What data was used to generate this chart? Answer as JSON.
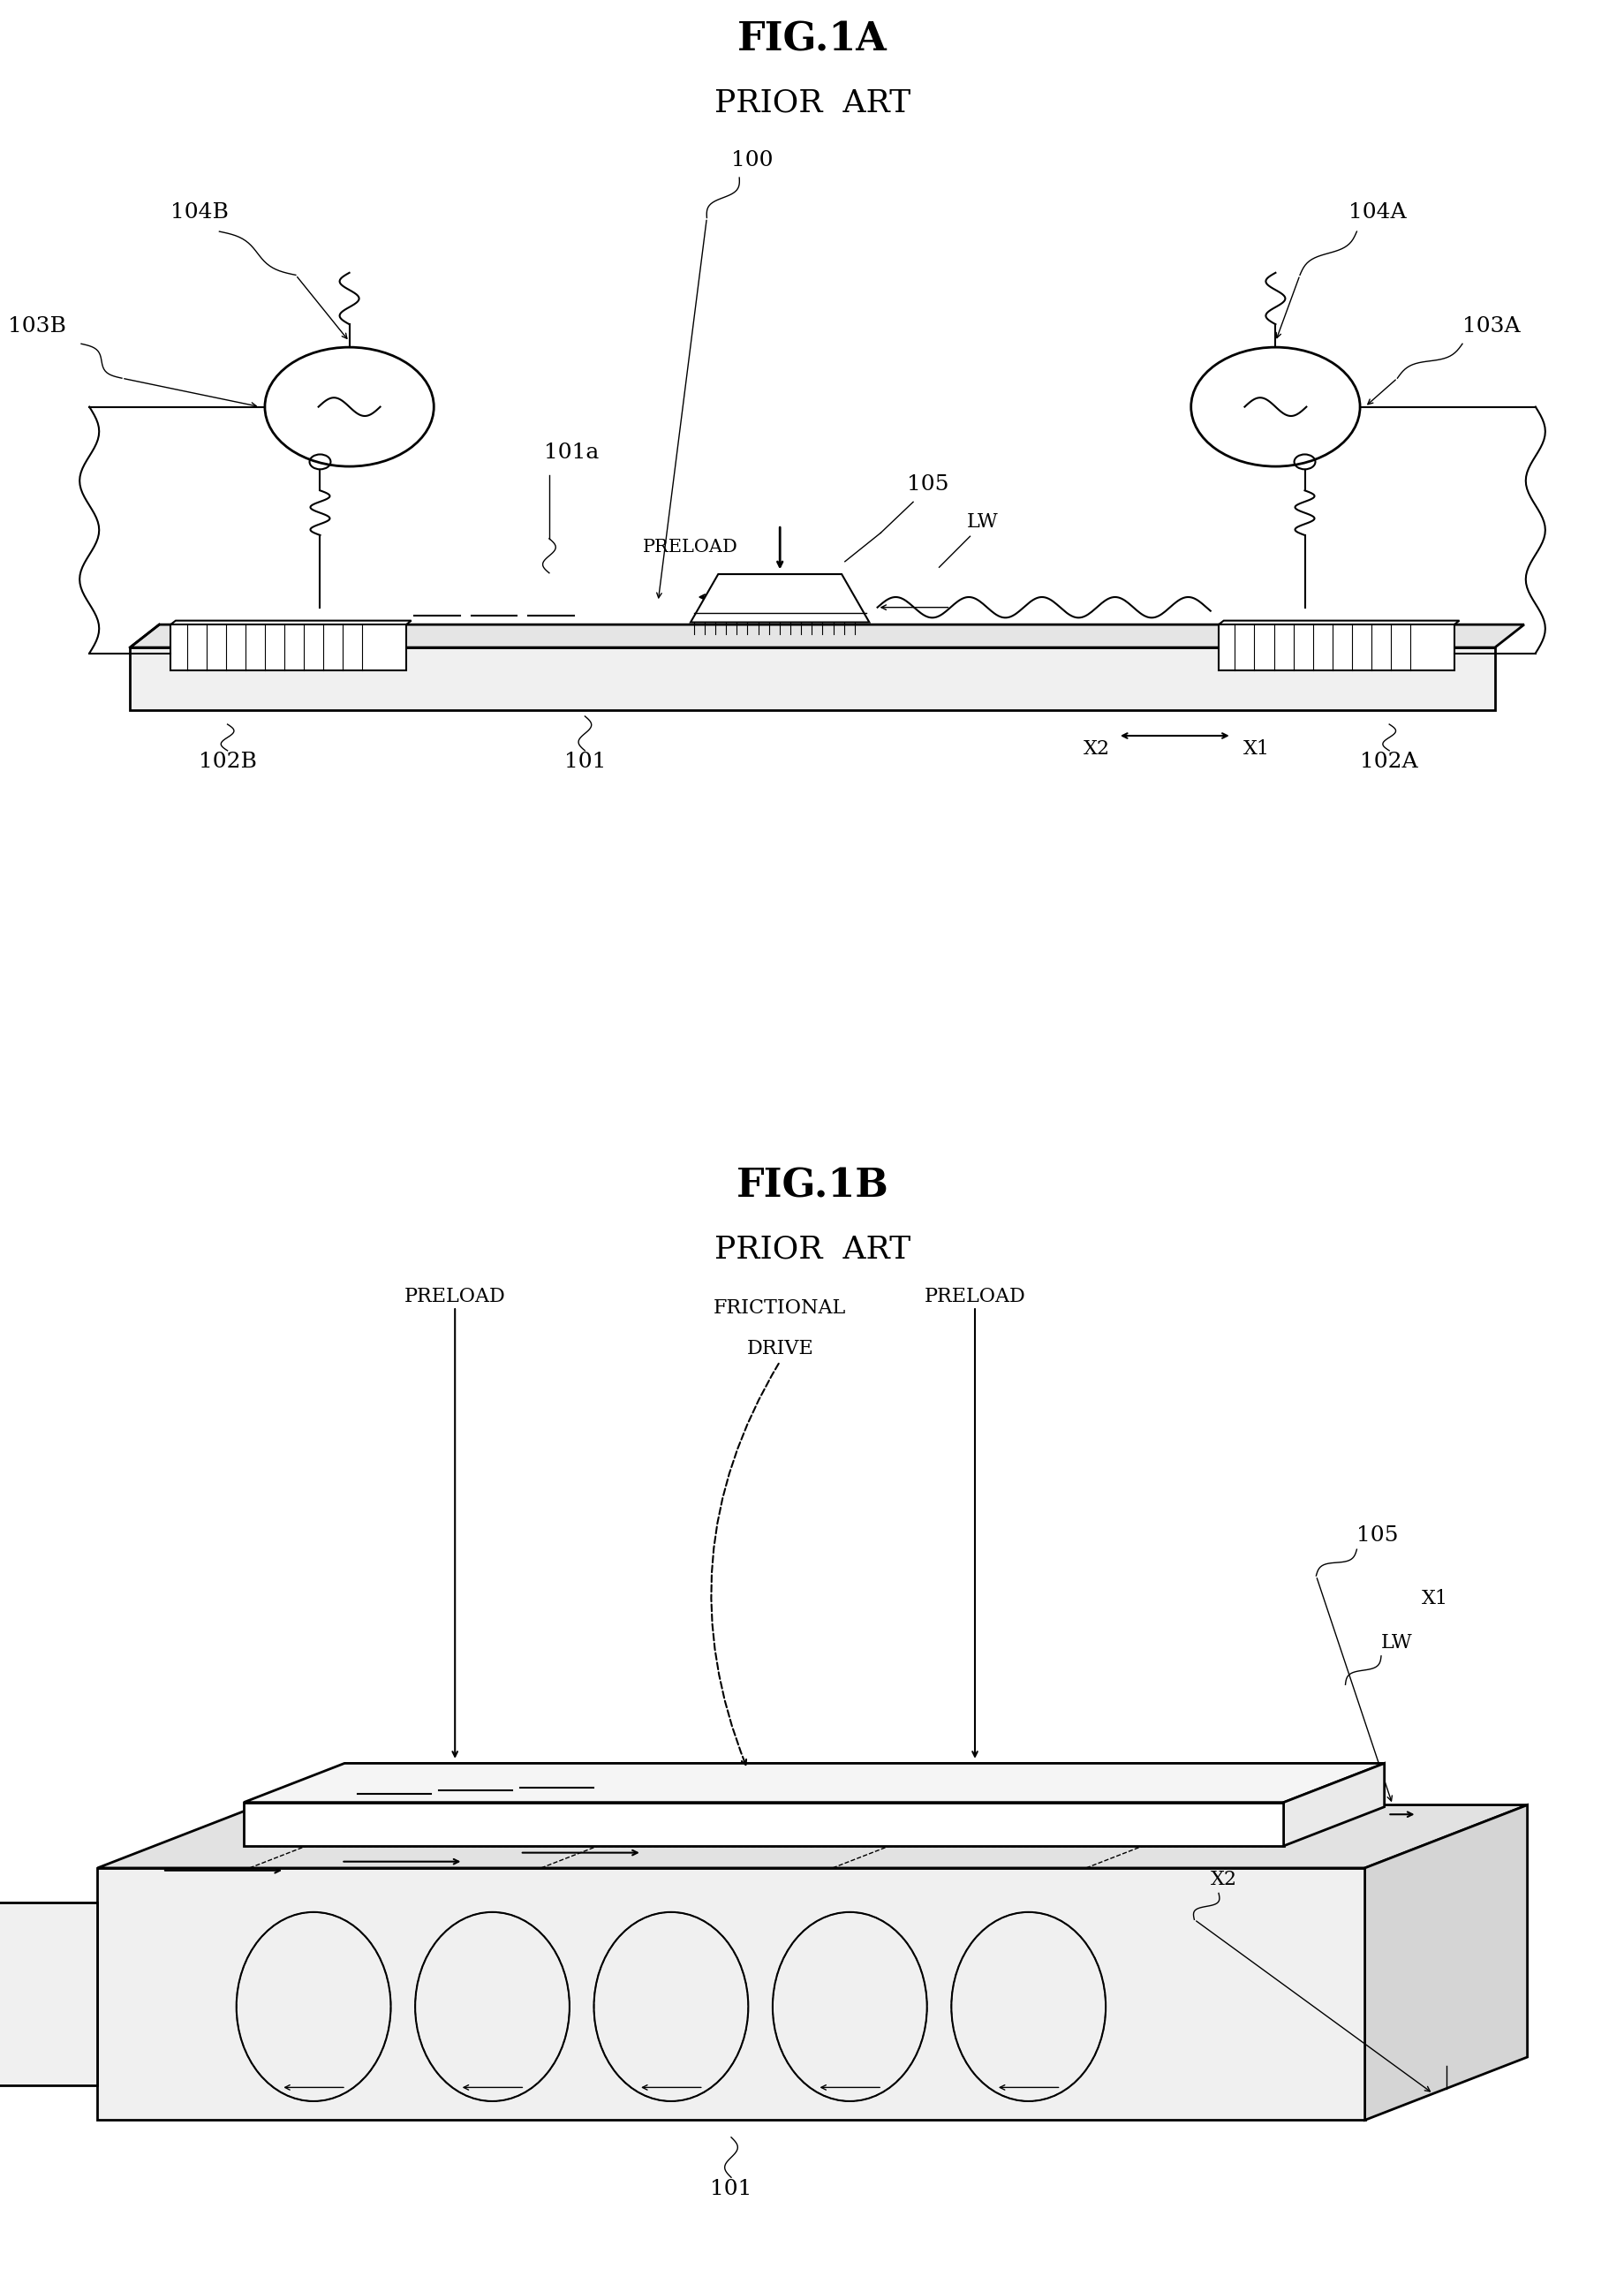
{
  "bg_color": "#ffffff",
  "fig1a_title": "FIG.1A",
  "fig1a_sub": "PRIOR  ART",
  "fig1b_title": "FIG.1B",
  "fig1b_sub": "PRIOR  ART",
  "title_fs": 32,
  "sub_fs": 26,
  "lbl_fs": 18,
  "sm_fs": 16
}
